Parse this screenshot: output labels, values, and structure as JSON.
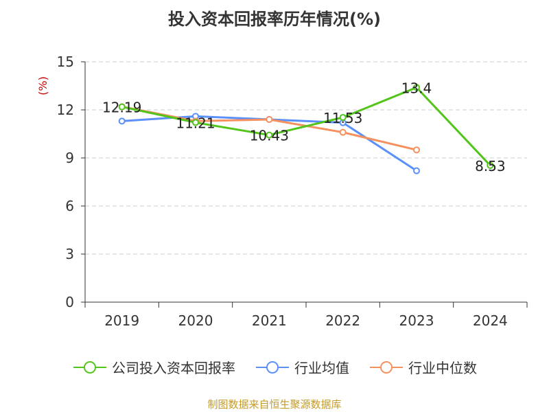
{
  "chart_data": {
    "type": "line",
    "title": "投入资本回报率历年情况(%)",
    "ylabel": "(%)",
    "xlabel": "",
    "categories": [
      "2019",
      "2020",
      "2021",
      "2022",
      "2023",
      "2024"
    ],
    "ylim": [
      0,
      15
    ],
    "yticks": [
      0,
      3,
      6,
      9,
      12,
      15
    ],
    "grid": true,
    "legend_position": "bottom",
    "series": [
      {
        "name": "公司投入资本回报率",
        "color": "#52c41a",
        "values": [
          12.19,
          11.21,
          10.43,
          11.53,
          13.4,
          8.53
        ],
        "show_labels": true
      },
      {
        "name": "行业均值",
        "color": "#5b8ff9",
        "values": [
          11.3,
          11.6,
          11.4,
          11.2,
          8.2,
          null
        ],
        "show_labels": false
      },
      {
        "name": "行业中位数",
        "color": "#f4915e",
        "values": [
          12.2,
          11.3,
          11.4,
          10.6,
          9.5,
          null
        ],
        "show_labels": false
      }
    ]
  },
  "source_note": "制图数据来自恒生聚源数据库"
}
